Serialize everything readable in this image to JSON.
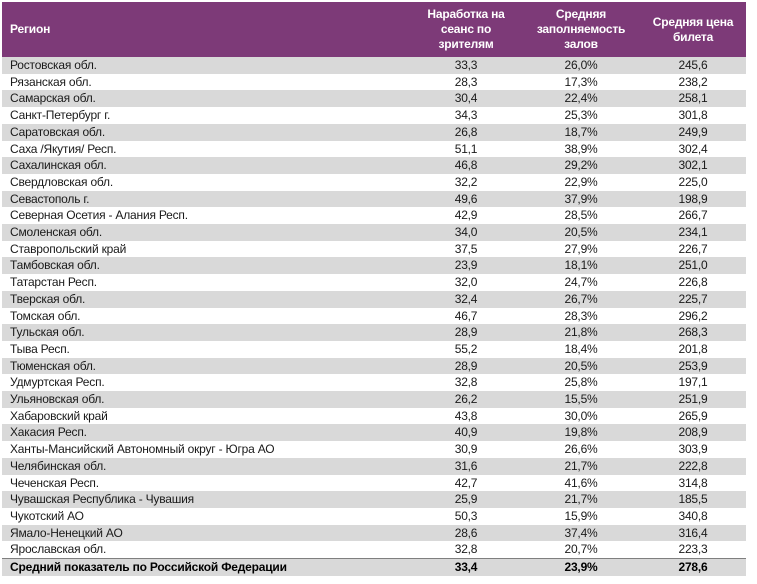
{
  "theme": {
    "header_bg": "#7d3a78",
    "header_text": "#ffffff",
    "alt_row_bg": "#d9d9d9",
    "row_bg": "#ffffff",
    "text_color": "#1a1a1a",
    "total_top_border": "#7f7f7f"
  },
  "table": {
    "columns": [
      {
        "key": "region",
        "label": "Регион"
      },
      {
        "key": "per_session",
        "label": "Наработка на сеанс по зрителям"
      },
      {
        "key": "occupancy",
        "label": "Средняя заполняемость залов"
      },
      {
        "key": "price",
        "label": "Средняя цена билета"
      }
    ],
    "rows": [
      [
        "Ростовская обл.",
        "33,3",
        "26,0%",
        "245,6"
      ],
      [
        "Рязанская обл.",
        "28,3",
        "17,3%",
        "238,2"
      ],
      [
        "Самарская обл.",
        "30,4",
        "22,4%",
        "258,1"
      ],
      [
        "Санкт-Петербург г.",
        "34,3",
        "25,3%",
        "301,8"
      ],
      [
        "Саратовская обл.",
        "26,8",
        "18,7%",
        "249,9"
      ],
      [
        "Саха /Якутия/ Респ.",
        "51,1",
        "38,9%",
        "302,4"
      ],
      [
        "Сахалинская обл.",
        "46,8",
        "29,2%",
        "302,1"
      ],
      [
        "Свердловская обл.",
        "32,2",
        "22,9%",
        "225,0"
      ],
      [
        "Севастополь г.",
        "49,6",
        "37,9%",
        "198,9"
      ],
      [
        "Северная Осетия - Алания Респ.",
        "42,9",
        "28,5%",
        "266,7"
      ],
      [
        "Смоленская обл.",
        "34,0",
        "20,5%",
        "234,1"
      ],
      [
        "Ставропольский край",
        "37,5",
        "27,9%",
        "226,7"
      ],
      [
        "Тамбовская обл.",
        "23,9",
        "18,1%",
        "251,0"
      ],
      [
        "Татарстан Респ.",
        "32,0",
        "24,7%",
        "226,8"
      ],
      [
        "Тверская обл.",
        "32,4",
        "26,7%",
        "225,7"
      ],
      [
        "Томская обл.",
        "46,7",
        "28,3%",
        "296,2"
      ],
      [
        "Тульская обл.",
        "28,9",
        "21,8%",
        "268,3"
      ],
      [
        "Тыва Респ.",
        "55,2",
        "18,4%",
        "201,8"
      ],
      [
        "Тюменская обл.",
        "28,9",
        "20,5%",
        "253,9"
      ],
      [
        "Удмуртская Респ.",
        "32,8",
        "25,8%",
        "197,1"
      ],
      [
        "Ульяновская обл.",
        "26,2",
        "15,5%",
        "251,9"
      ],
      [
        "Хабаровский край",
        "43,8",
        "30,0%",
        "265,9"
      ],
      [
        "Хакасия Респ.",
        "40,9",
        "19,8%",
        "208,9"
      ],
      [
        "Ханты-Мансийский Автономный округ - Югра АО",
        "30,9",
        "26,6%",
        "303,9"
      ],
      [
        "Челябинская обл.",
        "31,6",
        "21,7%",
        "222,8"
      ],
      [
        "Чеченская Респ.",
        "42,7",
        "41,6%",
        "314,8"
      ],
      [
        "Чувашская Республика - Чувашия",
        "25,9",
        "21,7%",
        "185,5"
      ],
      [
        "Чукотский АО",
        "50,3",
        "15,9%",
        "340,8"
      ],
      [
        "Ямало-Ненецкий АО",
        "28,6",
        "37,4%",
        "316,4"
      ],
      [
        "Ярославская обл.",
        "32,8",
        "20,7%",
        "223,3"
      ]
    ],
    "total": [
      "Средний показатель по Российской Федерации",
      "33,4",
      "23,9%",
      "278,6"
    ]
  }
}
